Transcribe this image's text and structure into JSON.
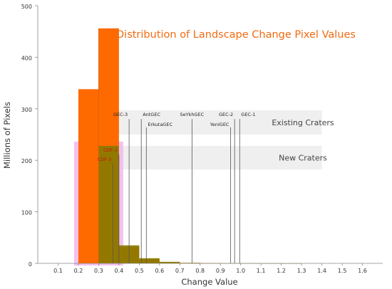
{
  "chart_data": {
    "type": "bar",
    "title": "Distribution of Landscape Change Pixel Values",
    "xlabel": "Change Value",
    "ylabel": "Millions of Pixels",
    "xlim": [
      0.0,
      1.7
    ],
    "ylim": [
      0,
      500
    ],
    "x_ticks": [
      "0.1",
      "0.2",
      "0.3",
      "0.4",
      "0.5",
      "0.6",
      "0.7",
      "0.8",
      "0.9",
      "1.0",
      "1.1",
      "1.2",
      "1.3",
      "1.4",
      "1.5",
      "1.6"
    ],
    "y_ticks": [
      "0",
      "100",
      "200",
      "300",
      "400",
      "500"
    ],
    "grid": false,
    "series": [
      {
        "color": "#ff6a00",
        "bins": [
          {
            "x0": 0.2,
            "x1": 0.3,
            "value": 338
          },
          {
            "x0": 0.3,
            "x1": 0.4,
            "value": 456
          },
          {
            "x0": 0.4,
            "x1": 0.5,
            "value": 32
          },
          {
            "x0": 0.5,
            "x1": 0.6,
            "value": 8
          },
          {
            "x0": 0.6,
            "x1": 0.7,
            "value": 2.5
          },
          {
            "x0": 0.7,
            "x1": 0.8,
            "value": 1
          },
          {
            "x0": 0.8,
            "x1": 0.9,
            "value": 0.5
          }
        ]
      },
      {
        "color": "#8a7a00",
        "bins": [
          {
            "x0": 0.3,
            "x1": 0.4,
            "value": 228
          },
          {
            "x0": 0.4,
            "x1": 0.5,
            "value": 35
          },
          {
            "x0": 0.5,
            "x1": 0.6,
            "value": 10
          },
          {
            "x0": 0.6,
            "x1": 0.7,
            "value": 3
          },
          {
            "x0": 0.7,
            "x1": 0.8,
            "value": 1
          },
          {
            "x0": 0.8,
            "x1": 0.9,
            "value": 0.5
          },
          {
            "x0": 0.9,
            "x1": 1.0,
            "value": 0.3
          },
          {
            "x0": 1.0,
            "x1": 1.1,
            "value": 0.2
          },
          {
            "x0": 1.1,
            "x1": 1.2,
            "value": 0.1
          },
          {
            "x0": 1.2,
            "x1": 1.3,
            "value": 0.1
          }
        ]
      }
    ],
    "pink_glow": {
      "color": "#f3b2ee",
      "x0": 0.2,
      "x1": 0.4,
      "value": 228
    },
    "bands": [
      {
        "label": "Existing Craters",
        "y0": 250,
        "y1": 297
      },
      {
        "label": "New Craters",
        "y0": 182,
        "y1": 228
      }
    ],
    "markers": [
      {
        "label": "GEC-3",
        "x": 0.45,
        "top": 280,
        "label_y": 283,
        "anchor": "end",
        "red": false
      },
      {
        "label": "AntGEC",
        "x": 0.51,
        "top": 280,
        "label_y": 283,
        "anchor": "start",
        "red": false
      },
      {
        "label": "ErkutaGEC",
        "x": 0.535,
        "top": 264,
        "label_y": 264,
        "anchor": "start",
        "red": false
      },
      {
        "label": "SeYkhGEC",
        "x": 0.76,
        "top": 280,
        "label_y": 283,
        "anchor": "middle",
        "red": false
      },
      {
        "label": "GEC-2",
        "x": 0.97,
        "top": 280,
        "label_y": 283,
        "anchor": "end",
        "red": false
      },
      {
        "label": "YeniGEC",
        "x": 0.95,
        "top": 264,
        "label_y": 264,
        "anchor": "end",
        "red": false
      },
      {
        "label": "GEC-1",
        "x": 0.995,
        "top": 280,
        "label_y": 283,
        "anchor": "start",
        "red": false
      },
      {
        "label": "CDF-1",
        "x": 0.4,
        "top": 211,
        "label_y": 214,
        "anchor": "end",
        "red": true
      },
      {
        "label": "CDF-3",
        "x": 0.37,
        "top": 193,
        "label_y": 196,
        "anchor": "end",
        "red": true
      }
    ]
  }
}
